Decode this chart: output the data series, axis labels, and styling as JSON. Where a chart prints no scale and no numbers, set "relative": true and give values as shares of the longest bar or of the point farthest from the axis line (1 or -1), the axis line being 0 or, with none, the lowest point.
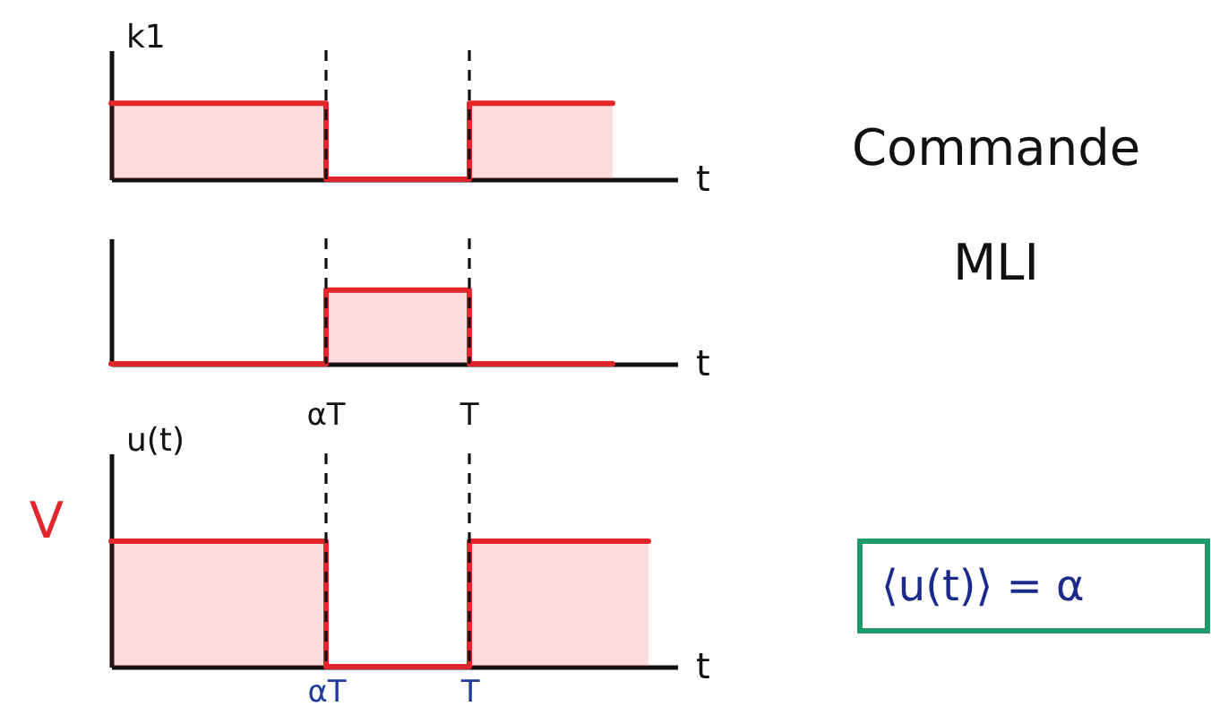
{
  "chart_data": [
    {
      "type": "step",
      "ylabel": "k1",
      "xlabel": "t",
      "relative": true,
      "categories": [
        null,
        null,
        null,
        null,
        null,
        null,
        "αT",
        null,
        null,
        null,
        "T",
        null,
        null,
        null,
        null,
        null
      ],
      "values": [
        1,
        1,
        1,
        1,
        1,
        1,
        0,
        0,
        0,
        0,
        1,
        1,
        1,
        1,
        1,
        null
      ],
      "color": "#e3262b",
      "tick_labels": false,
      "ref_lines": [
        {
          "axis": "x",
          "value": "αT",
          "color": "#111111",
          "line_style": "dashed"
        },
        {
          "axis": "x",
          "value": "T",
          "color": "#111111",
          "line_style": "dashed"
        }
      ]
    },
    {
      "type": "other",
      "annotations": [
        "Commande MLI"
      ]
    },
    {
      "type": "step",
      "xlabel": "t",
      "relative": true,
      "categories": [
        null,
        null,
        null,
        null,
        null,
        null,
        "αT",
        null,
        null,
        null,
        "T",
        null,
        null,
        null,
        null,
        null
      ],
      "values": [
        0,
        0,
        0,
        0,
        0,
        0,
        1,
        1,
        1,
        1,
        0,
        0,
        0,
        0,
        0,
        null
      ],
      "color": "#e3262b",
      "tick_labels": false,
      "ref_lines": [
        {
          "axis": "x",
          "value": "αT",
          "color": "#111111",
          "line_style": "dashed"
        },
        {
          "axis": "x",
          "value": "T",
          "color": "#111111",
          "line_style": "dashed"
        }
      ]
    },
    {
      "type": "step",
      "ylabel": "u(t)",
      "xlabel": "t",
      "relative": true,
      "categories": [
        null,
        null,
        null,
        null,
        null,
        null,
        "αT",
        null,
        null,
        null,
        "T",
        null,
        null,
        null,
        null,
        null
      ],
      "values": [
        1,
        1,
        1,
        1,
        1,
        1,
        0,
        0,
        0,
        0,
        1,
        1,
        1,
        1,
        1,
        1
      ],
      "color": "#e3262b",
      "tick_labels": "x",
      "annotations": [
        "V",
        "αT",
        "T"
      ],
      "ref_lines": [
        {
          "axis": "x",
          "value": "αT",
          "color": "#111111",
          "line_style": "dashed"
        },
        {
          "axis": "x",
          "value": "T",
          "color": "#111111",
          "line_style": "dashed"
        }
      ]
    },
    {
      "type": "other",
      "annotations": [
        "⟨u(t)⟩ = α"
      ]
    }
  ]
}
